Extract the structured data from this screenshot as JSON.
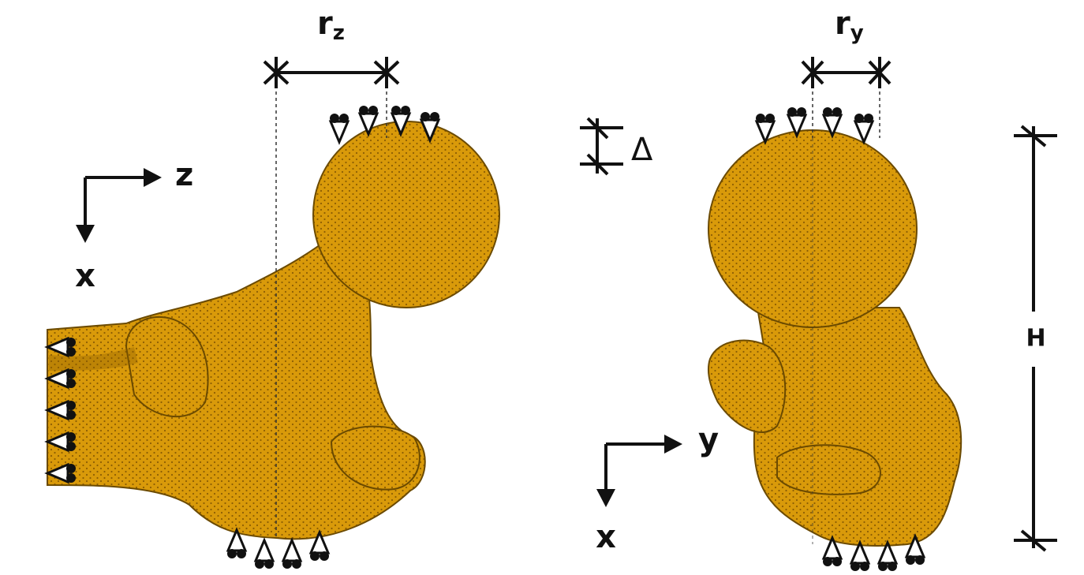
{
  "dimensions": {
    "r_z": {
      "symbol": "r",
      "subscript": "z"
    },
    "r_y": {
      "symbol": "r",
      "subscript": "y"
    },
    "delta": "Δ",
    "height": "H"
  },
  "axes_left": {
    "horizontal": "z",
    "vertical": "x"
  },
  "axes_right": {
    "horizontal": "y",
    "vertical": "x"
  }
}
